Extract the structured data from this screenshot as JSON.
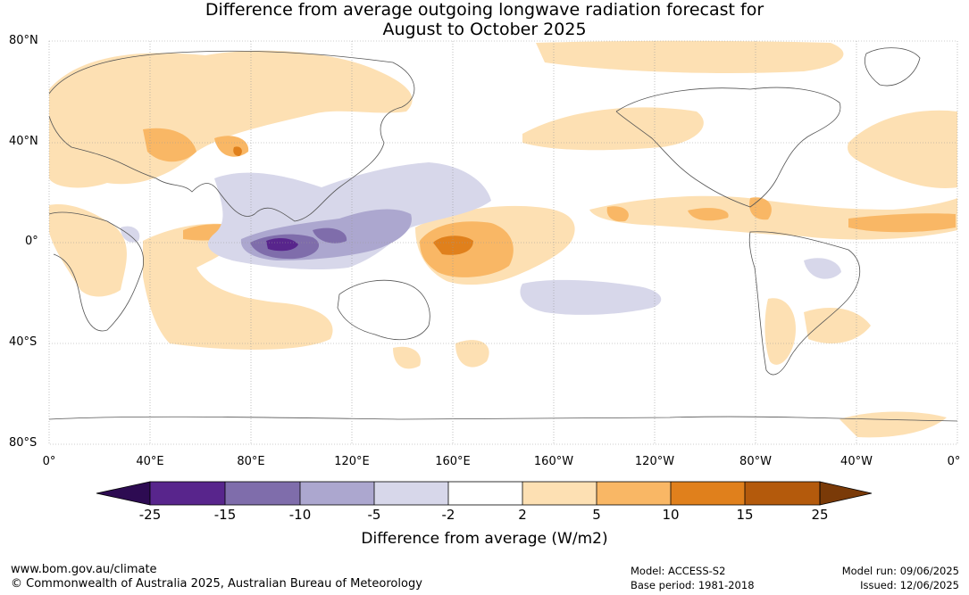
{
  "title_line1": "Difference from average outgoing longwave radiation forecast for",
  "title_line2": "August to October 2025",
  "lat_labels": [
    "80°N",
    "40°N",
    "0°",
    "40°S",
    "80°S"
  ],
  "lon_labels": [
    "0°",
    "40°E",
    "80°E",
    "120°E",
    "160°E",
    "160°W",
    "120°W",
    "80°W",
    "40°W",
    "0°"
  ],
  "colorbar": {
    "ticks": [
      "-25",
      "-15",
      "-10",
      "-5",
      "-2",
      "2",
      "5",
      "10",
      "15",
      "25"
    ],
    "colors": [
      "#2d0b52",
      "#58258c",
      "#7f6dab",
      "#aca7cf",
      "#d7d7ea",
      "#ffffff",
      "#fde0b3",
      "#f9b765",
      "#e0801c",
      "#b45a0c",
      "#7a3a08"
    ],
    "title": "Difference from average (W/m2)"
  },
  "footer": {
    "website": "www.bom.gov.au/climate",
    "copyright": "© Commonwealth of Australia 2025, Australian Bureau of Meteorology",
    "model": "Model: ACCESS-S2",
    "base_period": "Base period: 1981-2018",
    "model_run": "Model run: 09/06/2025",
    "issued": "Issued: 12/06/2025"
  }
}
